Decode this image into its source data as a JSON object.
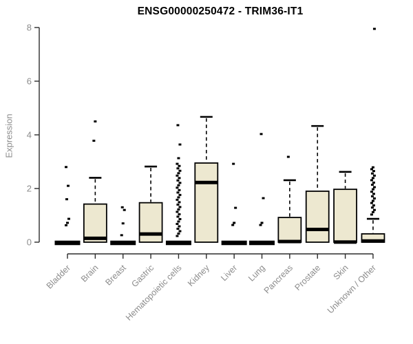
{
  "page_title": "ENSG00000250472 - TRIM36-IT1",
  "chart_data": {
    "type": "boxplot",
    "title": "ENSG00000250472 - TRIM36-IT1",
    "xlabel": "",
    "ylabel": "Expression",
    "ylim": [
      0,
      8
    ],
    "yticks": [
      0,
      2,
      4,
      6,
      8
    ],
    "grid": false,
    "legend": "none",
    "categories": [
      "Bladder",
      "Brain",
      "Breast",
      "Gastric",
      "Hematopoietic cells",
      "Kidney",
      "Liver",
      "Lung",
      "Pancreas",
      "Prostate",
      "Skin",
      "Unknown / Other"
    ],
    "series": [
      {
        "label": "Bladder",
        "q1": 0,
        "median": 0,
        "q3": 0,
        "whisker_low": 0,
        "whisker_high": 0,
        "outliers": [
          0.63,
          0.72,
          0.87,
          1.6,
          2.1,
          2.8
        ]
      },
      {
        "label": "Brain",
        "q1": 0,
        "median": 0.17,
        "q3": 1.42,
        "whisker_low": 0,
        "whisker_high": 2.4,
        "outliers": [
          3.78,
          4.5
        ]
      },
      {
        "label": "Breast",
        "q1": 0,
        "median": 0,
        "q3": 0,
        "whisker_low": 0,
        "whisker_high": 0,
        "outliers": [
          0.26,
          0.7,
          1.2,
          1.3
        ]
      },
      {
        "label": "Gastric",
        "q1": 0,
        "median": 0.33,
        "q3": 1.47,
        "whisker_low": 0,
        "whisker_high": 2.82,
        "outliers": []
      },
      {
        "label": "Hematopoietic cells",
        "q1": 0,
        "median": 0,
        "q3": 0,
        "whisker_low": 0,
        "whisker_high": 0,
        "outliers": [
          0.23,
          0.32,
          0.41,
          0.5,
          0.59,
          0.68,
          0.77,
          0.86,
          0.95,
          1.04,
          1.13,
          1.22,
          1.31,
          1.4,
          1.49,
          1.58,
          1.67,
          1.76,
          1.85,
          1.94,
          2.03,
          2.12,
          2.21,
          2.3,
          2.39,
          2.48,
          2.57,
          2.66,
          2.75,
          2.84,
          2.92,
          3.13,
          3.64,
          4.36
        ]
      },
      {
        "label": "Kidney",
        "q1": 0,
        "median": 2.25,
        "q3": 2.95,
        "whisker_low": 0,
        "whisker_high": 4.67,
        "outliers": []
      },
      {
        "label": "Liver",
        "q1": 0,
        "median": 0,
        "q3": 0,
        "whisker_low": 0,
        "whisker_high": 0,
        "outliers": [
          0.64,
          0.72,
          1.28,
          2.92
        ]
      },
      {
        "label": "Lung",
        "q1": 0,
        "median": 0,
        "q3": 0,
        "whisker_low": 0,
        "whisker_high": 0,
        "outliers": [
          0.64,
          0.72,
          1.64,
          4.03
        ]
      },
      {
        "label": "Pancreas",
        "q1": 0,
        "median": 0.05,
        "q3": 0.92,
        "whisker_low": 0,
        "whisker_high": 2.31,
        "outliers": [
          3.18
        ]
      },
      {
        "label": "Prostate",
        "q1": 0,
        "median": 0.5,
        "q3": 1.9,
        "whisker_low": 0,
        "whisker_high": 4.33,
        "outliers": []
      },
      {
        "label": "Skin",
        "q1": 0,
        "median": 0.03,
        "q3": 1.97,
        "whisker_low": 0,
        "whisker_high": 2.62,
        "outliers": []
      },
      {
        "label": "Unknown / Other",
        "q1": 0,
        "median": 0.07,
        "q3": 0.31,
        "whisker_low": 0,
        "whisker_high": 0.87,
        "outliers": [
          1.03,
          1.12,
          1.2,
          1.29,
          1.37,
          1.46,
          1.54,
          1.63,
          1.71,
          1.8,
          1.88,
          1.97,
          2.05,
          2.14,
          2.22,
          2.31,
          2.39,
          2.48,
          2.56,
          2.65,
          2.72,
          2.79,
          7.95
        ]
      }
    ],
    "colors": {
      "box_fill": "#EDE8D0",
      "box_stroke": "#000000",
      "median": "#000000",
      "whisker": "#000000",
      "outlier": "#000000",
      "axis": "#2B2B2B",
      "tick_label": "#8C8C8C",
      "axis_label": "#8C8C8C",
      "title": "#000000",
      "background": "#FFFFFF"
    },
    "layout_hints": {
      "x_label_rotation": -45,
      "whisker_style": "dashed"
    }
  }
}
